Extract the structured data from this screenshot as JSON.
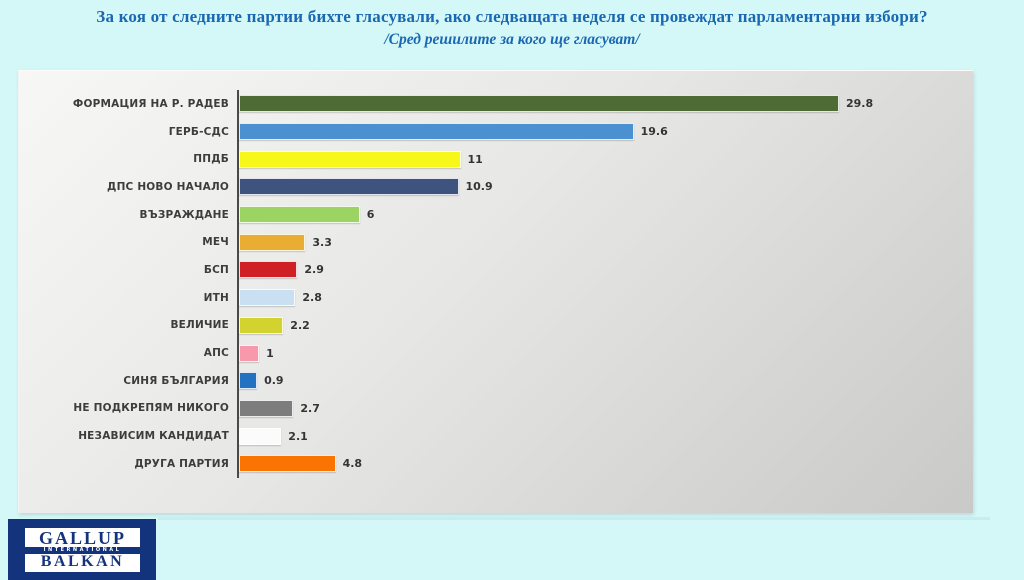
{
  "chart_data": {
    "type": "bar",
    "orientation": "horizontal",
    "title": "За коя от следните партии бихте гласували, ако следващата неделя се провеждат парламентарни избори?",
    "subtitle": "/Сред решилите за кого ще гласуват/",
    "xlim": [
      0,
      30
    ],
    "grid": false,
    "legend": false,
    "categories": [
      "ФОРМАЦИЯ НА Р. РАДЕВ",
      "ГЕРБ-СДС",
      "ППДБ",
      "ДПС НОВО НАЧАЛО",
      "ВЪЗРАЖДАНЕ",
      "МЕЧ",
      "БСП",
      "ИТН",
      "ВЕЛИЧИЕ",
      "АПС",
      "СИНЯ БЪЛГАРИЯ",
      "НЕ ПОДКРЕПЯМ НИКОГО",
      "НЕЗАВИСИМ КАНДИДАТ",
      "ДРУГА ПАРТИЯ"
    ],
    "values": [
      29.8,
      19.6,
      11,
      10.9,
      6,
      3.3,
      2.9,
      2.8,
      2.2,
      1,
      0.9,
      2.7,
      2.1,
      4.8
    ],
    "value_labels": [
      "29.8",
      "19.6",
      "11",
      "10.9",
      "6",
      "3.3",
      "2.9",
      "2.8",
      "2.2",
      "1",
      "0.9",
      "2.7",
      "2.1",
      "4.8"
    ],
    "bar_colors": [
      "#4e6a35",
      "#4b90d0",
      "#f7f719",
      "#3f537f",
      "#9cd463",
      "#e9ad33",
      "#cf2026",
      "#c9dff2",
      "#d2d32e",
      "#f899ab",
      "#2173c2",
      "#7d7d7d",
      "#fbfbfb",
      "#fa7404"
    ]
  },
  "logo": {
    "line1": "GALLUP",
    "line2": "INTERNATIONAL",
    "line3": "BALKAN"
  },
  "colors": {
    "title_blue": "#1a67b2",
    "page_background": "#d4f8f8",
    "panel_light": "#f7f7f5",
    "panel_dark": "#c9c9c7",
    "axis_gray": "#4a4a4a",
    "label_gray": "#3d3d3d",
    "logo_navy": "#14337d",
    "divider_cyan": "#c6edf0"
  }
}
